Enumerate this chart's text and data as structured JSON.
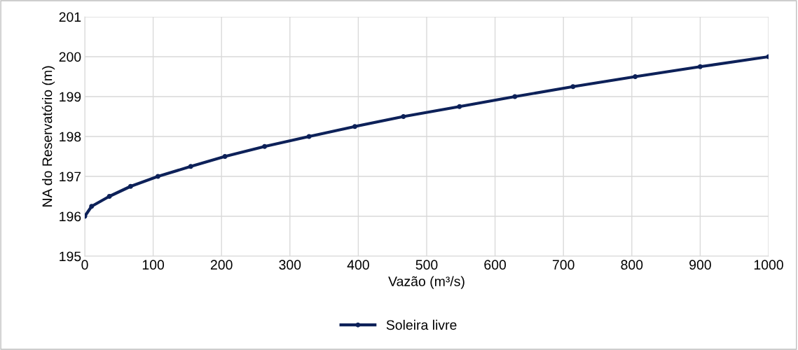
{
  "chart_data": {
    "type": "line",
    "xlabel": "Vazão (m³/s)",
    "ylabel": "NA do Reservatório (m)",
    "series": [
      {
        "name": "Soleira livre",
        "color": "#0d2159",
        "x": [
          0,
          10,
          36,
          67,
          107,
          155,
          205,
          263,
          328,
          395,
          466,
          548,
          629,
          714,
          805,
          900,
          1000
        ],
        "values": [
          196,
          196.25,
          196.5,
          196.75,
          197,
          197.25,
          197.5,
          197.75,
          198,
          198.25,
          198.5,
          198.75,
          199,
          199.25,
          199.5,
          199.75,
          200
        ]
      }
    ],
    "xlim": [
      0,
      1000
    ],
    "xticks": [
      0,
      100,
      200,
      300,
      400,
      500,
      600,
      700,
      800,
      900,
      1000
    ],
    "ylim": [
      195,
      201
    ],
    "yticks": [
      195,
      196,
      197,
      198,
      199,
      200,
      201
    ],
    "grid": true,
    "legend": "bottom",
    "marker": "circle",
    "line_style": "solid"
  }
}
